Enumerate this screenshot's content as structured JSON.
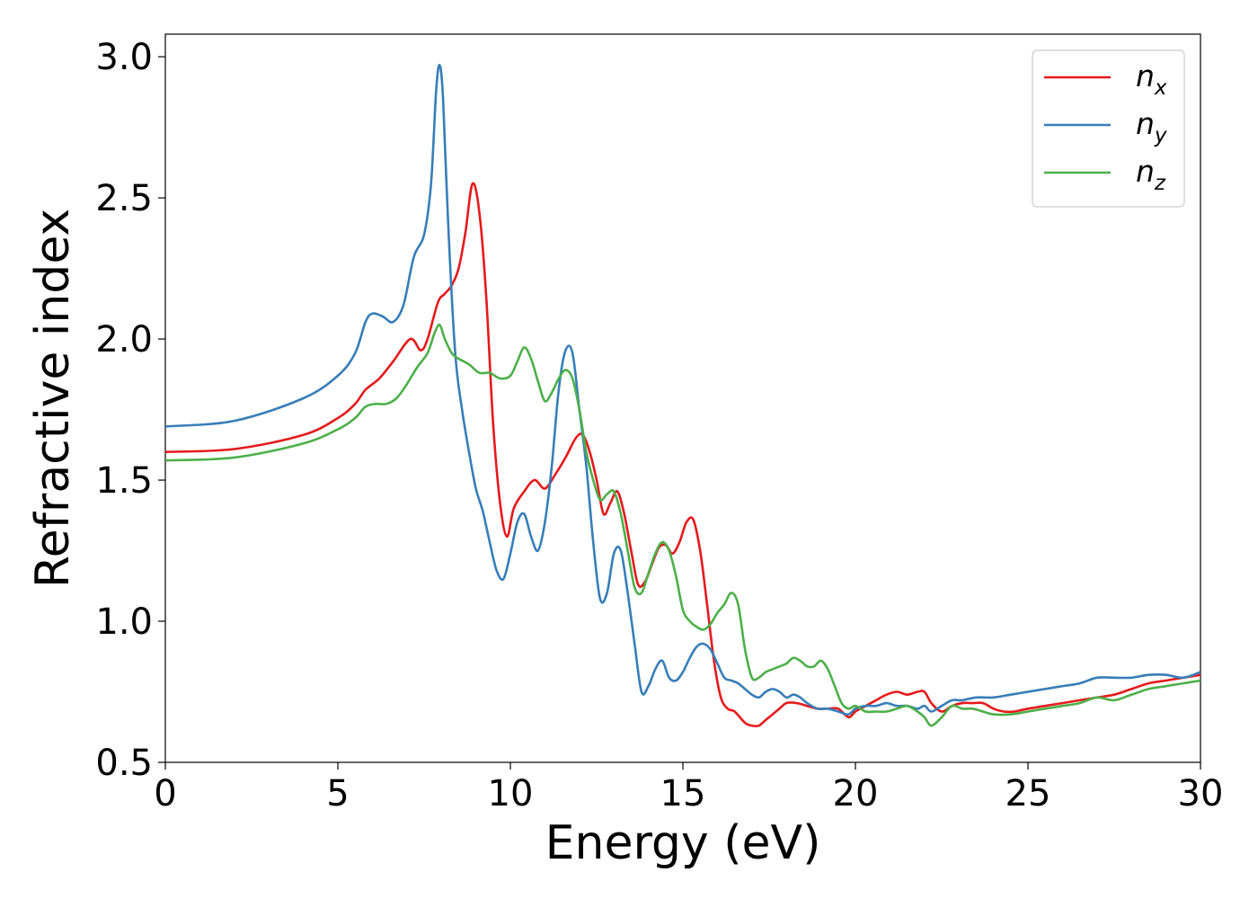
{
  "chart_data": {
    "type": "line",
    "title": "",
    "xlabel": "Energy (eV)",
    "ylabel": "Refractive index",
    "xlim": [
      0,
      30
    ],
    "ylim": [
      0.5,
      3.08
    ],
    "xticks": [
      "0",
      "5",
      "10",
      "15",
      "20",
      "25",
      "30"
    ],
    "yticks": [
      "0.5",
      "1.0",
      "1.5",
      "2.0",
      "2.5",
      "3.0"
    ],
    "grid": false,
    "legend_position": "top-right",
    "series": [
      {
        "name": "n_x",
        "legend_main": "n",
        "legend_sub": "x",
        "color": "#e41a1c",
        "x": [
          0,
          2,
          4,
          5,
          5.5,
          5.8,
          6.2,
          6.6,
          7.1,
          7.4,
          7.6,
          7.9,
          8.1,
          8.3,
          8.5,
          8.7,
          8.9,
          9.1,
          9.3,
          9.5,
          9.7,
          9.9,
          10.1,
          10.4,
          10.7,
          11.0,
          11.3,
          11.6,
          11.9,
          12.1,
          12.3,
          12.5,
          12.7,
          12.9,
          13.1,
          13.3,
          13.5,
          13.7,
          13.9,
          14.1,
          14.3,
          14.5,
          14.7,
          14.9,
          15.1,
          15.3,
          15.5,
          15.7,
          15.9,
          16.1,
          16.3,
          16.5,
          16.8,
          17.0,
          17.2,
          17.4,
          17.6,
          17.8,
          18.0,
          18.3,
          18.6,
          18.9,
          19.2,
          19.5,
          19.8,
          20.0,
          20.3,
          20.6,
          20.9,
          21.2,
          21.5,
          21.8,
          22.0,
          22.2,
          22.5,
          22.8,
          23.1,
          23.4,
          23.7,
          24.0,
          24.3,
          24.6,
          25.0,
          25.5,
          26.0,
          26.5,
          27.0,
          27.5,
          28.0,
          28.5,
          29.0,
          29.5,
          30.0
        ],
        "values": [
          1.6,
          1.61,
          1.66,
          1.72,
          1.77,
          1.82,
          1.86,
          1.92,
          2.0,
          1.96,
          2.0,
          2.13,
          2.16,
          2.19,
          2.25,
          2.38,
          2.55,
          2.45,
          2.15,
          1.7,
          1.42,
          1.3,
          1.4,
          1.46,
          1.5,
          1.47,
          1.52,
          1.58,
          1.65,
          1.66,
          1.6,
          1.5,
          1.38,
          1.42,
          1.46,
          1.38,
          1.25,
          1.13,
          1.14,
          1.2,
          1.26,
          1.27,
          1.24,
          1.28,
          1.35,
          1.36,
          1.25,
          1.06,
          0.86,
          0.73,
          0.69,
          0.68,
          0.64,
          0.63,
          0.63,
          0.65,
          0.67,
          0.69,
          0.71,
          0.71,
          0.7,
          0.69,
          0.69,
          0.69,
          0.66,
          0.68,
          0.7,
          0.72,
          0.74,
          0.75,
          0.74,
          0.75,
          0.75,
          0.71,
          0.68,
          0.7,
          0.71,
          0.71,
          0.71,
          0.69,
          0.68,
          0.68,
          0.69,
          0.7,
          0.71,
          0.72,
          0.73,
          0.74,
          0.76,
          0.78,
          0.79,
          0.8,
          0.81
        ]
      },
      {
        "name": "n_y",
        "legend_main": "n",
        "legend_sub": "y",
        "color": "#377eb8",
        "x": [
          0,
          2,
          4,
          5,
          5.5,
          5.8,
          6.0,
          6.3,
          6.6,
          6.9,
          7.2,
          7.5,
          7.7,
          7.85,
          7.95,
          8.05,
          8.2,
          8.4,
          8.6,
          8.8,
          9.0,
          9.2,
          9.4,
          9.6,
          9.8,
          10.0,
          10.2,
          10.4,
          10.6,
          10.8,
          11.0,
          11.2,
          11.4,
          11.6,
          11.8,
          12.0,
          12.2,
          12.4,
          12.6,
          12.8,
          13.0,
          13.2,
          13.4,
          13.6,
          13.8,
          14.0,
          14.2,
          14.4,
          14.6,
          14.8,
          15.0,
          15.2,
          15.4,
          15.6,
          15.8,
          16.0,
          16.2,
          16.4,
          16.6,
          16.8,
          17.0,
          17.2,
          17.4,
          17.6,
          17.8,
          18.0,
          18.2,
          18.4,
          18.6,
          18.9,
          19.2,
          19.5,
          19.8,
          20.0,
          20.3,
          20.6,
          20.9,
          21.2,
          21.5,
          21.8,
          22.0,
          22.2,
          22.5,
          22.8,
          23.1,
          23.5,
          24.0,
          24.5,
          25.0,
          25.5,
          26.0,
          26.5,
          27.0,
          27.5,
          28.0,
          28.5,
          29.0,
          29.5,
          30.0
        ],
        "values": [
          1.69,
          1.71,
          1.79,
          1.87,
          1.95,
          2.06,
          2.09,
          2.08,
          2.06,
          2.12,
          2.29,
          2.37,
          2.55,
          2.88,
          2.97,
          2.85,
          2.4,
          1.95,
          1.75,
          1.6,
          1.47,
          1.39,
          1.28,
          1.18,
          1.15,
          1.24,
          1.35,
          1.38,
          1.3,
          1.25,
          1.35,
          1.55,
          1.82,
          1.96,
          1.95,
          1.75,
          1.55,
          1.28,
          1.08,
          1.1,
          1.24,
          1.25,
          1.1,
          0.92,
          0.75,
          0.77,
          0.83,
          0.86,
          0.8,
          0.79,
          0.82,
          0.87,
          0.91,
          0.92,
          0.9,
          0.85,
          0.8,
          0.79,
          0.78,
          0.76,
          0.74,
          0.73,
          0.75,
          0.76,
          0.75,
          0.73,
          0.74,
          0.73,
          0.71,
          0.69,
          0.69,
          0.68,
          0.67,
          0.69,
          0.7,
          0.7,
          0.71,
          0.7,
          0.7,
          0.69,
          0.7,
          0.68,
          0.7,
          0.72,
          0.72,
          0.73,
          0.73,
          0.74,
          0.75,
          0.76,
          0.77,
          0.78,
          0.8,
          0.8,
          0.8,
          0.81,
          0.81,
          0.8,
          0.82
        ]
      },
      {
        "name": "n_z",
        "legend_main": "n",
        "legend_sub": "z",
        "color": "#4daf4a",
        "x": [
          0,
          2,
          4,
          5,
          5.5,
          5.8,
          6.1,
          6.4,
          6.7,
          7.0,
          7.3,
          7.6,
          7.8,
          7.95,
          8.1,
          8.3,
          8.5,
          8.8,
          9.1,
          9.4,
          9.7,
          10.0,
          10.2,
          10.4,
          10.6,
          10.8,
          11.0,
          11.2,
          11.4,
          11.6,
          11.8,
          12.0,
          12.2,
          12.4,
          12.6,
          12.8,
          13.0,
          13.2,
          13.4,
          13.6,
          13.8,
          14.0,
          14.2,
          14.4,
          14.6,
          14.8,
          15.0,
          15.2,
          15.4,
          15.6,
          15.8,
          16.0,
          16.2,
          16.4,
          16.6,
          16.8,
          17.0,
          17.2,
          17.4,
          17.6,
          17.8,
          18.0,
          18.2,
          18.4,
          18.6,
          18.8,
          19.0,
          19.2,
          19.4,
          19.6,
          19.8,
          20.0,
          20.3,
          20.6,
          20.9,
          21.2,
          21.5,
          21.8,
          22.0,
          22.2,
          22.5,
          22.8,
          23.1,
          23.4,
          23.7,
          24.0,
          24.5,
          25.0,
          25.5,
          26.0,
          26.5,
          27.0,
          27.5,
          28.0,
          28.5,
          29.0,
          29.5,
          30.0
        ],
        "values": [
          1.57,
          1.58,
          1.63,
          1.68,
          1.72,
          1.76,
          1.77,
          1.77,
          1.79,
          1.84,
          1.9,
          1.95,
          2.02,
          2.05,
          2.0,
          1.95,
          1.93,
          1.91,
          1.88,
          1.88,
          1.86,
          1.87,
          1.92,
          1.97,
          1.93,
          1.85,
          1.78,
          1.81,
          1.86,
          1.89,
          1.86,
          1.75,
          1.6,
          1.5,
          1.43,
          1.45,
          1.46,
          1.38,
          1.25,
          1.12,
          1.1,
          1.17,
          1.24,
          1.28,
          1.25,
          1.16,
          1.04,
          1.0,
          0.98,
          0.97,
          0.99,
          1.03,
          1.06,
          1.1,
          1.06,
          0.9,
          0.8,
          0.8,
          0.82,
          0.83,
          0.84,
          0.85,
          0.87,
          0.86,
          0.84,
          0.84,
          0.86,
          0.83,
          0.77,
          0.71,
          0.69,
          0.7,
          0.68,
          0.68,
          0.68,
          0.69,
          0.7,
          0.68,
          0.66,
          0.63,
          0.66,
          0.7,
          0.69,
          0.69,
          0.68,
          0.67,
          0.67,
          0.68,
          0.69,
          0.7,
          0.71,
          0.73,
          0.72,
          0.74,
          0.76,
          0.77,
          0.78,
          0.79
        ]
      }
    ]
  }
}
